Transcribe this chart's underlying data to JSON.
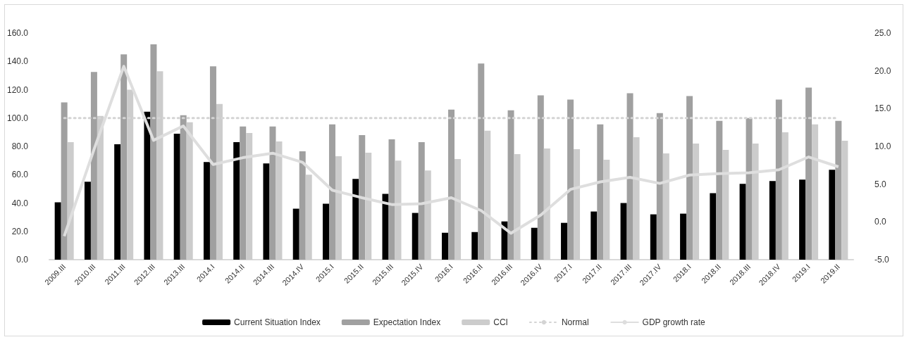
{
  "chart_data": {
    "type": "bar",
    "categories": [
      "2009.III",
      "2010.III",
      "2011.III",
      "2012.III",
      "2013.III",
      "2014.I",
      "2014.II",
      "2014.III",
      "2014.IV",
      "2015.I",
      "2015.II",
      "2015.III",
      "2015.IV",
      "2016.I",
      "2016.II",
      "2016.III",
      "2016.IV",
      "2017.I",
      "2017.II",
      "2017.III",
      "2017.IV",
      "2018.I",
      "2018.II",
      "2018.III",
      "2018.IV",
      "2019.I",
      "2019.II"
    ],
    "series": [
      {
        "name": "Current Situation Index",
        "color": "#000000",
        "values": [
          40.5,
          55,
          81.5,
          104.5,
          89,
          69,
          83,
          68,
          36,
          39.5,
          57,
          46.5,
          33,
          19,
          19.5,
          27,
          22.5,
          26,
          34,
          40,
          32,
          32.5,
          47,
          53.5,
          55.5,
          56.5,
          63.5
        ]
      },
      {
        "name": "Expectation Index",
        "color": "#a0a0a0",
        "values": [
          111,
          132.5,
          145,
          152,
          102,
          136.5,
          94,
          94,
          76.5,
          95.5,
          88,
          85,
          83,
          106,
          138.5,
          105.5,
          116,
          113,
          95.5,
          117.5,
          103.5,
          115.5,
          98,
          100,
          113,
          121.5,
          98
        ]
      },
      {
        "name": "CCI",
        "color": "#cccccc",
        "values": [
          83,
          101.5,
          120,
          133,
          97,
          110,
          89.5,
          83.5,
          60,
          73,
          75.5,
          70,
          63,
          71,
          91,
          74.5,
          78.5,
          78,
          70.5,
          86.5,
          75,
          82,
          77.5,
          82,
          90,
          95.5,
          84
        ]
      },
      {
        "name": "Normal",
        "type": "line",
        "line_style": "dotted",
        "color": "#d4d4d4",
        "values": [
          100,
          100,
          100,
          100,
          100,
          100,
          100,
          100,
          100,
          100,
          100,
          100,
          100,
          100,
          100,
          100,
          100,
          100,
          100,
          100,
          100,
          100,
          100,
          100,
          100,
          100,
          100
        ]
      },
      {
        "name": "GDP growth rate",
        "type": "line",
        "axis": "y2",
        "color": "#dedede",
        "values": [
          -1.9,
          9.6,
          20.6,
          10.8,
          12.7,
          7.6,
          8.5,
          9.1,
          7.9,
          4.2,
          3.2,
          2.3,
          2.4,
          3.2,
          1.5,
          -1.5,
          0.9,
          4.3,
          5.3,
          5.9,
          5.1,
          6.2,
          6.4,
          6.5,
          6.9,
          8.6,
          7.3
        ]
      }
    ],
    "ylim": [
      0,
      160
    ],
    "yticks": [
      {
        "value": 0,
        "label": "0.0"
      },
      {
        "value": 20,
        "label": "20.0"
      },
      {
        "value": 40,
        "label": "40.0"
      },
      {
        "value": 60,
        "label": "60.0"
      },
      {
        "value": 80,
        "label": "80.0"
      },
      {
        "value": 100,
        "label": "100.0"
      },
      {
        "value": 120,
        "label": "120.0"
      },
      {
        "value": 140,
        "label": "140.0"
      },
      {
        "value": 160,
        "label": "160.0"
      }
    ],
    "y2lim": [
      -5,
      25
    ],
    "y2ticks": [
      {
        "value": -5,
        "label": "-5.0"
      },
      {
        "value": 0,
        "label": "0.0"
      },
      {
        "value": 5,
        "label": "5.0"
      },
      {
        "value": 10,
        "label": "10.0"
      },
      {
        "value": 15,
        "label": "15.0"
      },
      {
        "value": 20,
        "label": "20.0"
      },
      {
        "value": 25,
        "label": "25.0"
      }
    ],
    "grid": false,
    "legend": "bottom",
    "marker": "none"
  }
}
